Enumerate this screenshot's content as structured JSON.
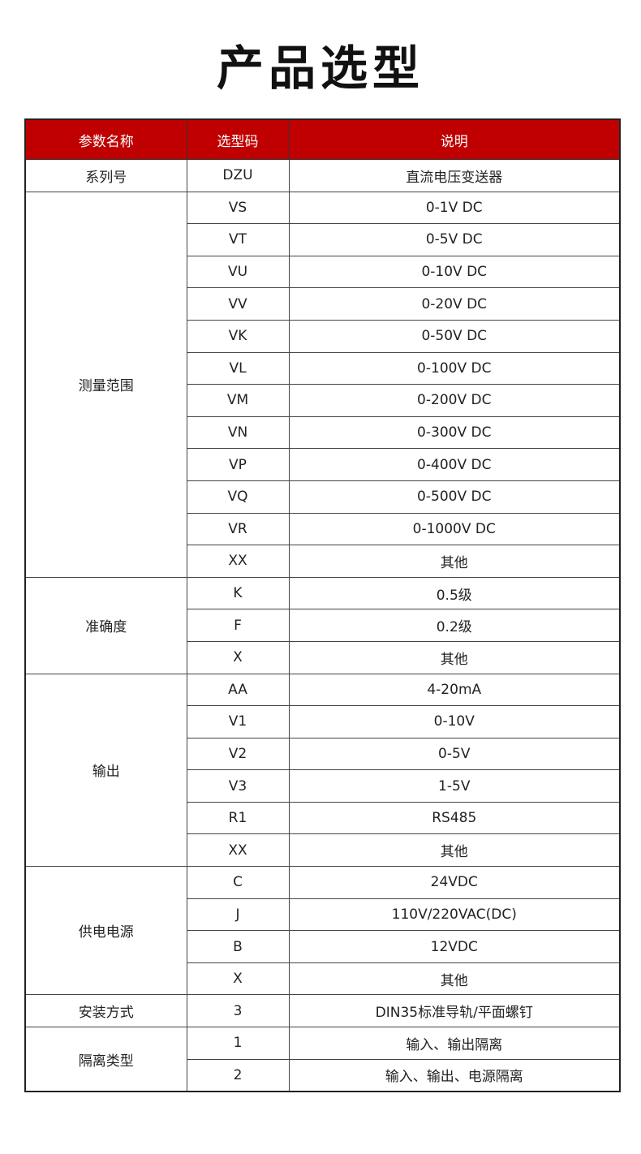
{
  "title": "产品选型",
  "colors": {
    "header_bg": "#c00000",
    "header_text": "#ffffff"
  },
  "table": {
    "headers": [
      "参数名称",
      "选型码",
      "说明"
    ],
    "groups": [
      {
        "name": "系列号",
        "rows": [
          [
            "DZU",
            "直流电压变送器"
          ]
        ]
      },
      {
        "name": "测量范围",
        "rows": [
          [
            "VS",
            "0-1V DC"
          ],
          [
            "VT",
            "0-5V DC"
          ],
          [
            "VU",
            "0-10V DC"
          ],
          [
            "VV",
            "0-20V DC"
          ],
          [
            "VK",
            "0-50V DC"
          ],
          [
            "VL",
            "0-100V DC"
          ],
          [
            "VM",
            "0-200V DC"
          ],
          [
            "VN",
            "0-300V DC"
          ],
          [
            "VP",
            "0-400V DC"
          ],
          [
            "VQ",
            "0-500V DC"
          ],
          [
            "VR",
            "0-1000V DC"
          ],
          [
            "XX",
            "其他"
          ]
        ]
      },
      {
        "name": "准确度",
        "rows": [
          [
            "K",
            "0.5级"
          ],
          [
            "F",
            "0.2级"
          ],
          [
            "X",
            "其他"
          ]
        ]
      },
      {
        "name": "输出",
        "rows": [
          [
            "AA",
            "4-20mA"
          ],
          [
            "V1",
            "0-10V"
          ],
          [
            "V2",
            "0-5V"
          ],
          [
            "V3",
            "1-5V"
          ],
          [
            "R1",
            "RS485"
          ],
          [
            "XX",
            "其他"
          ]
        ]
      },
      {
        "name": "供电电源",
        "rows": [
          [
            "C",
            "24VDC"
          ],
          [
            "J",
            "110V/220VAC(DC)"
          ],
          [
            "B",
            "12VDC"
          ],
          [
            "X",
            "其他"
          ]
        ]
      },
      {
        "name": "安装方式",
        "rows": [
          [
            "3",
            "DIN35标准导轨/平面螺钉"
          ]
        ]
      },
      {
        "name": "隔离类型",
        "rows": [
          [
            "1",
            "输入、输出隔离"
          ],
          [
            "2",
            "输入、输出、电源隔离"
          ]
        ]
      }
    ]
  }
}
